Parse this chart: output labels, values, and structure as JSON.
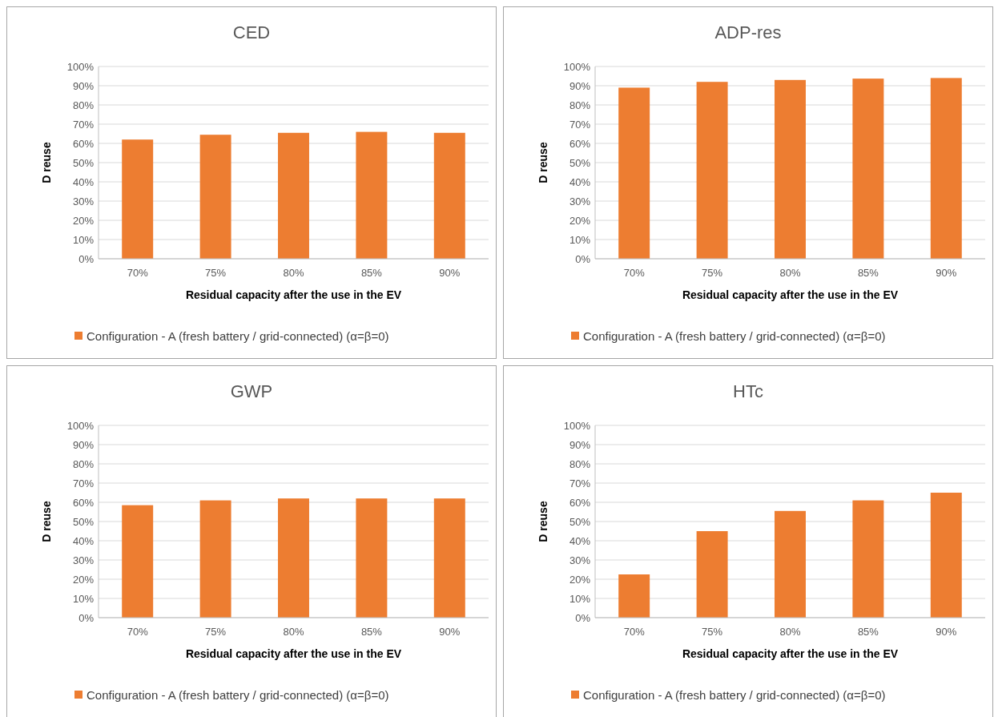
{
  "chart_data": [
    {
      "type": "bar",
      "title": "CED",
      "xlabel": "Residual capacity after the use in the EV",
      "ylabel": "D reuse",
      "categories": [
        "70%",
        "75%",
        "80%",
        "85%",
        "90%"
      ],
      "series": [
        {
          "name": "Configuration - A (fresh battery / grid-connected) (α=β=0)",
          "color": "#ed7d31",
          "values": [
            62,
            64.5,
            65.5,
            66,
            65.5
          ]
        }
      ],
      "ylim": [
        0,
        100
      ],
      "yticks": [
        {
          "value": 0,
          "label": "0%"
        },
        {
          "value": 10,
          "label": "10%"
        },
        {
          "value": 20,
          "label": "20%"
        },
        {
          "value": 30,
          "label": "30%"
        },
        {
          "value": 40,
          "label": "40%"
        },
        {
          "value": 50,
          "label": "50%"
        },
        {
          "value": 60,
          "label": "60%"
        },
        {
          "value": 70,
          "label": "70%"
        },
        {
          "value": 80,
          "label": "80%"
        },
        {
          "value": 90,
          "label": "90%"
        },
        {
          "value": 100,
          "label": "100%"
        }
      ],
      "grid": "y",
      "legend": "bottom"
    },
    {
      "type": "bar",
      "title": "ADP-res",
      "xlabel": "Residual capacity after the use in the EV",
      "ylabel": "D reuse",
      "categories": [
        "70%",
        "75%",
        "80%",
        "85%",
        "90%"
      ],
      "series": [
        {
          "name": "Configuration - A (fresh battery / grid-connected) (α=β=0)",
          "color": "#ed7d31",
          "values": [
            89,
            92,
            93,
            93.7,
            94
          ]
        }
      ],
      "ylim": [
        0,
        100
      ],
      "yticks": [
        {
          "value": 0,
          "label": "0%"
        },
        {
          "value": 10,
          "label": "10%"
        },
        {
          "value": 20,
          "label": "20%"
        },
        {
          "value": 30,
          "label": "30%"
        },
        {
          "value": 40,
          "label": "40%"
        },
        {
          "value": 50,
          "label": "50%"
        },
        {
          "value": 60,
          "label": "60%"
        },
        {
          "value": 70,
          "label": "70%"
        },
        {
          "value": 80,
          "label": "80%"
        },
        {
          "value": 90,
          "label": "90%"
        },
        {
          "value": 100,
          "label": "100%"
        }
      ],
      "grid": "y",
      "legend": "bottom"
    },
    {
      "type": "bar",
      "title": "GWP",
      "xlabel": "Residual capacity after the use in the EV",
      "ylabel": "D reuse",
      "categories": [
        "70%",
        "75%",
        "80%",
        "85%",
        "90%"
      ],
      "series": [
        {
          "name": "Configuration - A (fresh battery / grid-connected) (α=β=0)",
          "color": "#ed7d31",
          "values": [
            58.5,
            61,
            62,
            62,
            62
          ]
        }
      ],
      "ylim": [
        0,
        100
      ],
      "yticks": [
        {
          "value": 0,
          "label": "0%"
        },
        {
          "value": 10,
          "label": "10%"
        },
        {
          "value": 20,
          "label": "20%"
        },
        {
          "value": 30,
          "label": "30%"
        },
        {
          "value": 40,
          "label": "40%"
        },
        {
          "value": 50,
          "label": "50%"
        },
        {
          "value": 60,
          "label": "60%"
        },
        {
          "value": 70,
          "label": "70%"
        },
        {
          "value": 80,
          "label": "80%"
        },
        {
          "value": 90,
          "label": "90%"
        },
        {
          "value": 100,
          "label": "100%"
        }
      ],
      "grid": "y",
      "legend": "bottom"
    },
    {
      "type": "bar",
      "title": "HTc",
      "xlabel": "Residual capacity after the use in the EV",
      "ylabel": "D reuse",
      "categories": [
        "70%",
        "75%",
        "80%",
        "85%",
        "90%"
      ],
      "series": [
        {
          "name": "Configuration - A (fresh battery / grid-connected) (α=β=0)",
          "color": "#ed7d31",
          "values": [
            22.5,
            45,
            55.5,
            61,
            65
          ]
        }
      ],
      "ylim": [
        0,
        100
      ],
      "yticks": [
        {
          "value": 0,
          "label": "0%"
        },
        {
          "value": 10,
          "label": "10%"
        },
        {
          "value": 20,
          "label": "20%"
        },
        {
          "value": 30,
          "label": "30%"
        },
        {
          "value": 40,
          "label": "40%"
        },
        {
          "value": 50,
          "label": "50%"
        },
        {
          "value": 60,
          "label": "60%"
        },
        {
          "value": 70,
          "label": "70%"
        },
        {
          "value": 80,
          "label": "80%"
        },
        {
          "value": 90,
          "label": "90%"
        },
        {
          "value": 100,
          "label": "100%"
        }
      ],
      "grid": "y",
      "legend": "bottom"
    }
  ]
}
